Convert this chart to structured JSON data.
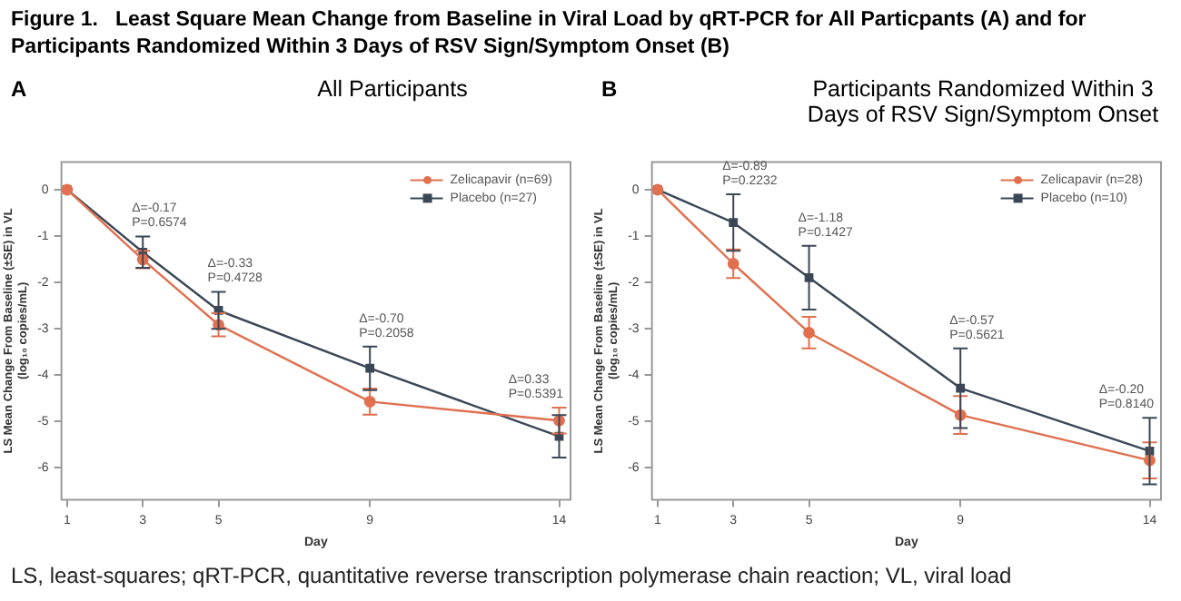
{
  "chart_data": [
    {
      "type": "line",
      "title": "Figure 1.   Least Square Mean Change from Baseline in Viral Load by qRT-PCR for All Particpants (A) and for Participants Randomized Within 3 Days of RSV Sign/Symptom Onset (B)",
      "subtitle": "All Participants",
      "xlabel": "Day",
      "ylabel": "LS Mean Change From Baseline (±SE) in VL (log₁₀ copies/mL)",
      "x": [
        1,
        3,
        5,
        9,
        14
      ],
      "xlim": [
        0.85,
        14.3
      ],
      "xticks": [
        1,
        3,
        5,
        9,
        14
      ],
      "ylim": [
        -6.7,
        0.6
      ],
      "yticks": [
        -6,
        -5,
        -4,
        -3,
        -2,
        -1,
        0
      ],
      "grid": false,
      "legend": "top right",
      "line_style": "solid",
      "series": [
        {
          "name": "Zelicapavir (n=69)",
          "color": "#e0704f",
          "marker": "circle",
          "values": [
            0,
            -1.51,
            -2.92,
            -4.58,
            -4.99
          ],
          "errors": [
            null,
            0.19,
            0.25,
            0.28,
            0.28
          ]
        },
        {
          "name": "Placebo (n=27)",
          "color": "#3b4756",
          "marker": "square",
          "values": [
            0,
            -1.35,
            -2.61,
            -3.86,
            -5.33
          ],
          "errors": [
            null,
            0.34,
            0.4,
            0.47,
            0.46
          ]
        }
      ],
      "annotations": [
        "A",
        {
          "text": "Δ=-0.17\nP=0.6574",
          "x": 3,
          "y": -1.01
        },
        {
          "text": "Δ=-0.33\nP=0.4728",
          "x": 5,
          "y": -2.21
        },
        {
          "text": "Δ=-0.70\nP=0.2058",
          "x": 9,
          "y": -3.39
        },
        {
          "text": "Δ=0.33\nP=0.5391",
          "x": 14,
          "y": -4.71
        }
      ]
    },
    {
      "type": "line",
      "title": "Participants Randomized Within 3 Days of RSV Sign/Symptom Onset",
      "xlabel": "Day",
      "ylabel": "LS Mean Change From Baseline (±SE) in VL (log₁₀ copies/mL)",
      "x": [
        1,
        3,
        5,
        9,
        14
      ],
      "xlim": [
        0.85,
        14.3
      ],
      "xticks": [
        1,
        3,
        5,
        9,
        14
      ],
      "ylim": [
        -6.7,
        0.6
      ],
      "yticks": [
        -6,
        -5,
        -4,
        -3,
        -2,
        -1,
        0
      ],
      "grid": false,
      "legend": "top right",
      "line_style": "solid",
      "series": [
        {
          "name": "Zelicapavir (n=28)",
          "color": "#e0704f",
          "marker": "circle",
          "values": [
            0,
            -1.6,
            -3.09,
            -4.87,
            -5.85
          ],
          "errors": [
            null,
            0.31,
            0.34,
            0.41,
            0.39
          ]
        },
        {
          "name": "Placebo (n=10)",
          "color": "#3b4756",
          "marker": "square",
          "values": [
            0,
            -0.71,
            -1.9,
            -4.29,
            -5.65
          ],
          "errors": [
            null,
            0.61,
            0.69,
            0.86,
            0.72
          ]
        }
      ],
      "annotations": [
        "B",
        {
          "text": "Δ=-0.89\nP=0.2232",
          "x": 3,
          "y": -0.1
        },
        {
          "text": "Δ=-1.18\nP=0.1427",
          "x": 5,
          "y": -1.21
        },
        {
          "text": "Δ=-0.57\nP=0.5621",
          "x": 9,
          "y": -3.43
        },
        {
          "text": "Δ=-0.20\nP=0.8140",
          "x": 14,
          "y": -4.93
        },
        "LS, least-squares; qRT-PCR, quantitative reverse transcription polymerase chain reaction; VL, viral load"
      ]
    }
  ]
}
